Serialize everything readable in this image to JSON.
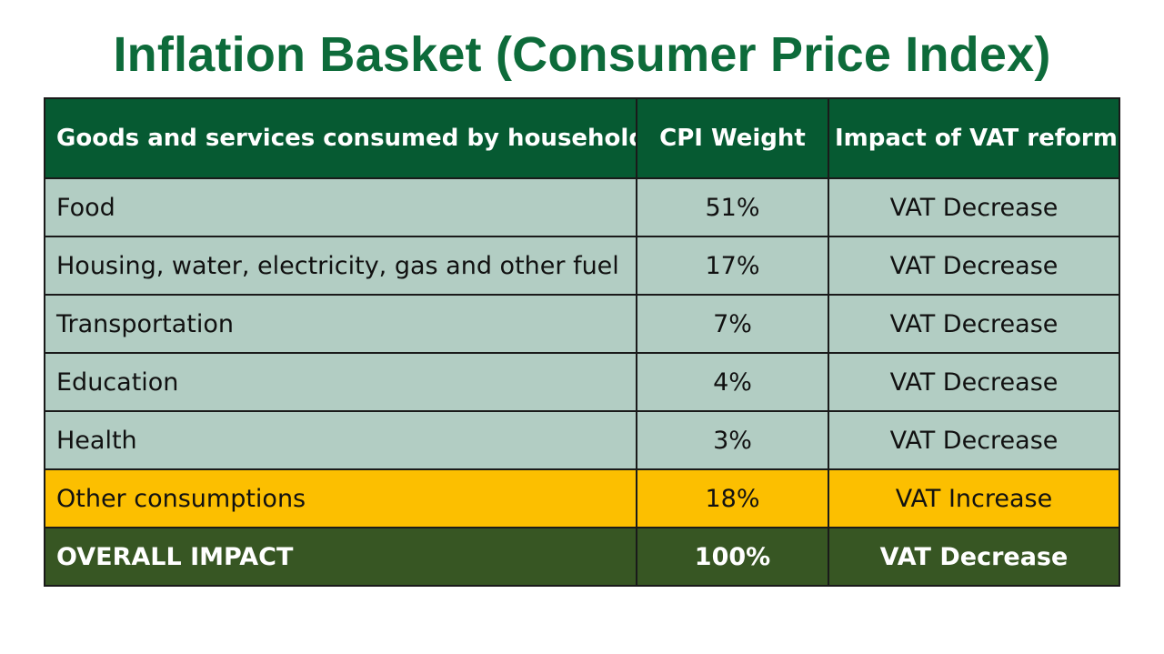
{
  "title": "Inflation Basket (Consumer Price Index)",
  "colors": {
    "title": "#0d6b3a",
    "header_bg": "#065a32",
    "row_bg": "#b2cdc3",
    "highlight_bg": "#fcbf00",
    "total_bg": "#375623"
  },
  "table": {
    "headers": [
      "Goods and services consumed by households",
      "CPI Weight",
      "Impact of VAT reform"
    ],
    "rows": [
      {
        "item": "Food",
        "weight": "51%",
        "impact": "VAT Decrease"
      },
      {
        "item": "Housing, water, electricity, gas and other fuel",
        "weight": "17%",
        "impact": "VAT Decrease"
      },
      {
        "item": "Transportation",
        "weight": "7%",
        "impact": "VAT Decrease"
      },
      {
        "item": "Education",
        "weight": "4%",
        "impact": "VAT Decrease"
      },
      {
        "item": "Health",
        "weight": "3%",
        "impact": "VAT Decrease"
      },
      {
        "item": "Other consumptions",
        "weight": "18%",
        "impact": "VAT Increase"
      }
    ],
    "total": {
      "item": "OVERALL IMPACT",
      "weight": "100%",
      "impact": "VAT Decrease"
    }
  }
}
